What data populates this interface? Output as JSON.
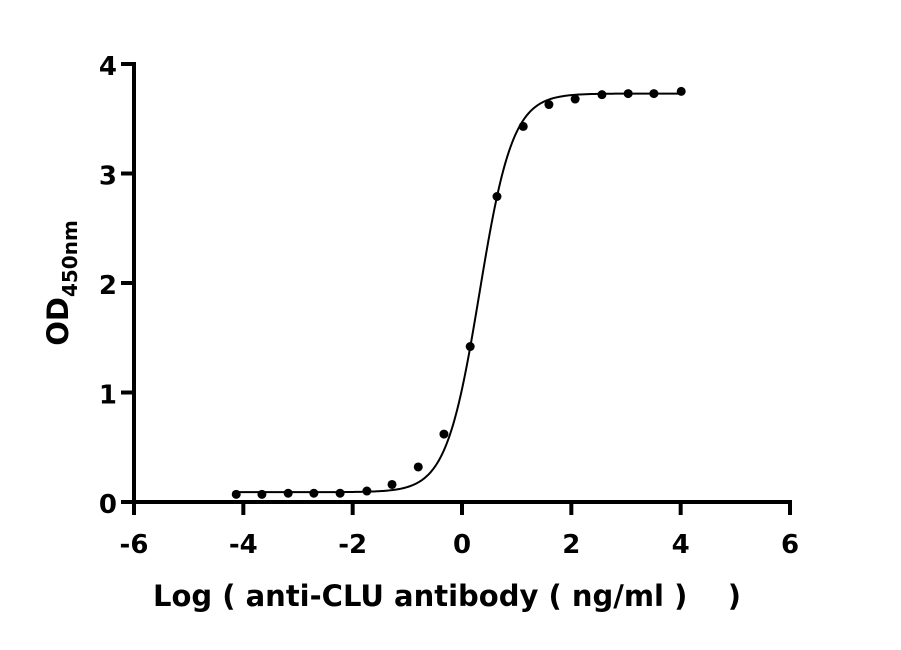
{
  "chart_data": {
    "type": "scatter",
    "xlabel": "Log ( anti-CLU antibody ( ng/ml )    )",
    "ylabel": "OD",
    "ylabel_subscript": "450nm",
    "xlim": [
      -6,
      6
    ],
    "ylim": [
      0,
      4
    ],
    "xticks": [
      -6,
      -4,
      -2,
      0,
      2,
      4,
      6
    ],
    "yticks": [
      0,
      1,
      2,
      3,
      4
    ],
    "grid": false,
    "point_color": "#000000",
    "x": [
      -4.13,
      -3.66,
      -3.18,
      -2.71,
      -2.23,
      -1.74,
      -1.28,
      -0.8,
      -0.33,
      0.15,
      0.64,
      1.12,
      1.59,
      2.07,
      2.56,
      3.04,
      3.51,
      4.01
    ],
    "y": [
      0.07,
      0.07,
      0.08,
      0.08,
      0.08,
      0.1,
      0.16,
      0.32,
      0.62,
      1.42,
      2.79,
      3.43,
      3.63,
      3.68,
      3.72,
      3.73,
      3.73,
      3.75
    ],
    "fit": {
      "model": "four-parameter logistic",
      "bottom": 0.09,
      "top": 3.73,
      "logEC50": 0.32,
      "hill_slope": 1.43
    }
  }
}
